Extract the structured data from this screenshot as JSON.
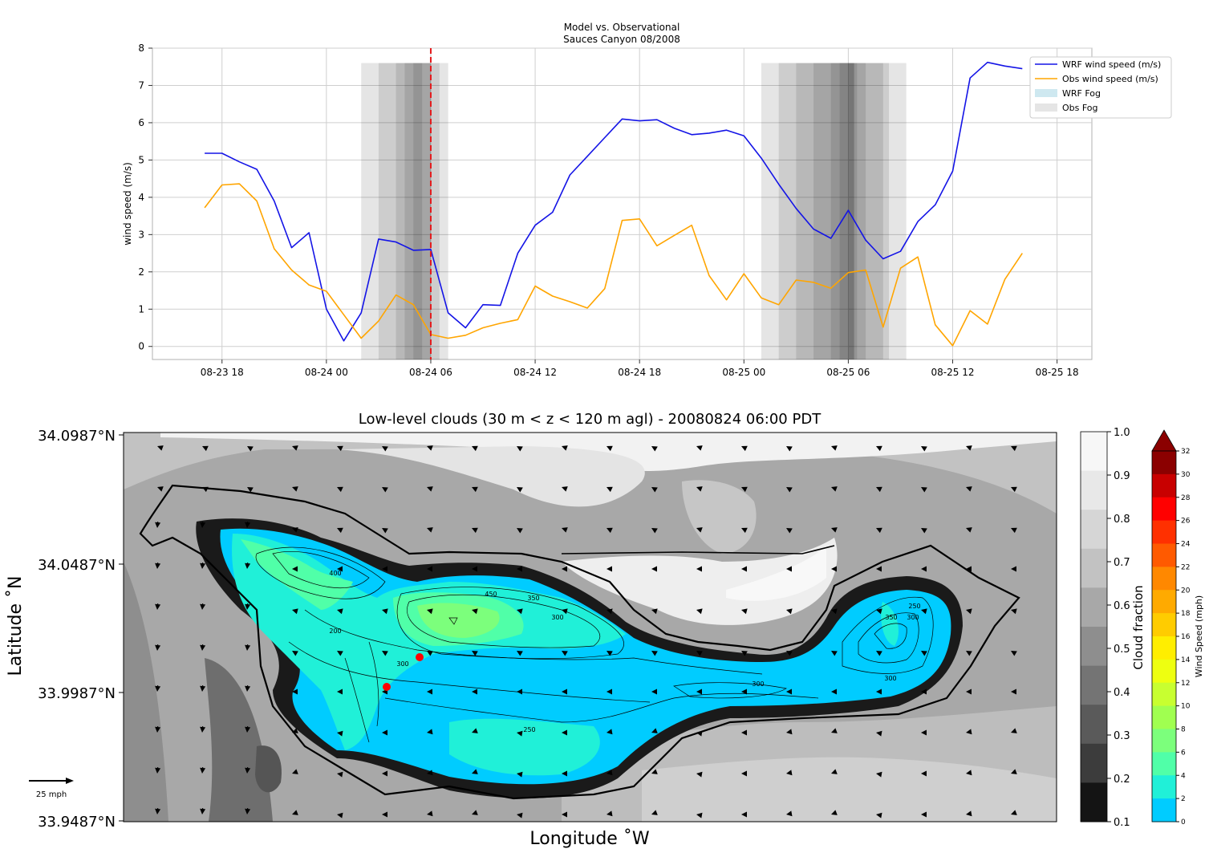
{
  "chart_data": [
    {
      "type": "line",
      "title": "Model vs. Observational",
      "subtitle": "Sauces Canyon 08/2008",
      "xlabel": "",
      "ylabel": "wind speed (m/s)",
      "ylim": [
        -0.35,
        8
      ],
      "yticks": [
        "0",
        "1",
        "2",
        "3",
        "4",
        "5",
        "6",
        "7",
        "8"
      ],
      "xlim": [
        "08-23 14:00",
        "08-25 20:00"
      ],
      "xticks": [
        {
          "t": "08-23 18:00",
          "label": "08-23 18"
        },
        {
          "t": "08-24 00:00",
          "label": "08-24 00"
        },
        {
          "t": "08-24 06:00",
          "label": "08-24 06"
        },
        {
          "t": "08-24 12:00",
          "label": "08-24 12"
        },
        {
          "t": "08-24 18:00",
          "label": "08-24 18"
        },
        {
          "t": "08-25 00:00",
          "label": "08-25 00"
        },
        {
          "t": "08-25 06:00",
          "label": "08-25 06"
        },
        {
          "t": "08-25 12:00",
          "label": "08-25 12"
        },
        {
          "t": "08-25 18:00",
          "label": "08-25 18"
        }
      ],
      "grid": true,
      "legend_position": "top-right",
      "series": [
        {
          "name": "WRF wind speed (m/s)",
          "color": "#1414e6",
          "points": [
            [
              "08-23 17:00",
              5.18
            ],
            [
              "08-23 18:00",
              5.18
            ],
            [
              "08-23 19:00",
              4.95
            ],
            [
              "08-23 20:00",
              4.75
            ],
            [
              "08-23 21:00",
              3.9
            ],
            [
              "08-23 22:00",
              2.65
            ],
            [
              "08-23 23:00",
              3.05
            ],
            [
              "08-24 00:00",
              1.0
            ],
            [
              "08-24 01:00",
              0.15
            ],
            [
              "08-24 02:00",
              0.9
            ],
            [
              "08-24 03:00",
              2.88
            ],
            [
              "08-24 04:00",
              2.8
            ],
            [
              "08-24 05:00",
              2.58
            ],
            [
              "08-24 06:00",
              2.6
            ],
            [
              "08-24 07:00",
              0.9
            ],
            [
              "08-24 08:00",
              0.5
            ],
            [
              "08-24 09:00",
              1.12
            ],
            [
              "08-24 10:00",
              1.1
            ],
            [
              "08-24 11:00",
              2.5
            ],
            [
              "08-24 12:00",
              3.25
            ],
            [
              "08-24 13:00",
              3.6
            ],
            [
              "08-24 14:00",
              4.6
            ],
            [
              "08-24 15:00",
              5.1
            ],
            [
              "08-24 16:00",
              5.6
            ],
            [
              "08-24 17:00",
              6.1
            ],
            [
              "08-24 18:00",
              6.05
            ],
            [
              "08-24 19:00",
              6.08
            ],
            [
              "08-24 20:00",
              5.85
            ],
            [
              "08-24 21:00",
              5.68
            ],
            [
              "08-24 22:00",
              5.72
            ],
            [
              "08-24 23:00",
              5.8
            ],
            [
              "08-25 00:00",
              5.65
            ],
            [
              "08-25 01:00",
              5.05
            ],
            [
              "08-25 02:00",
              4.35
            ],
            [
              "08-25 03:00",
              3.7
            ],
            [
              "08-25 04:00",
              3.15
            ],
            [
              "08-25 05:00",
              2.9
            ],
            [
              "08-25 06:00",
              3.65
            ],
            [
              "08-25 07:00",
              2.85
            ],
            [
              "08-25 08:00",
              2.35
            ],
            [
              "08-25 09:00",
              2.55
            ],
            [
              "08-25 10:00",
              3.35
            ],
            [
              "08-25 11:00",
              3.8
            ],
            [
              "08-25 12:00",
              4.7
            ],
            [
              "08-25 13:00",
              7.2
            ],
            [
              "08-25 14:00",
              7.62
            ],
            [
              "08-25 15:00",
              7.52
            ],
            [
              "08-25 16:00",
              7.45
            ]
          ]
        },
        {
          "name": "Obs wind speed (m/s)",
          "color": "#ffa500",
          "points": [
            [
              "08-23 17:00",
              3.72
            ],
            [
              "08-23 18:00",
              4.33
            ],
            [
              "08-23 19:00",
              4.36
            ],
            [
              "08-23 20:00",
              3.9
            ],
            [
              "08-23 21:00",
              2.62
            ],
            [
              "08-23 22:00",
              2.05
            ],
            [
              "08-23 23:00",
              1.65
            ],
            [
              "08-24 00:00",
              1.48
            ],
            [
              "08-24 01:00",
              0.85
            ],
            [
              "08-24 02:00",
              0.22
            ],
            [
              "08-24 03:00",
              0.68
            ],
            [
              "08-24 04:00",
              1.38
            ],
            [
              "08-24 05:00",
              1.12
            ],
            [
              "08-24 06:00",
              0.32
            ],
            [
              "08-24 07:00",
              0.22
            ],
            [
              "08-24 08:00",
              0.3
            ],
            [
              "08-24 09:00",
              0.5
            ],
            [
              "08-24 10:00",
              0.62
            ],
            [
              "08-24 11:00",
              0.72
            ],
            [
              "08-24 12:00",
              1.62
            ],
            [
              "08-24 13:00",
              1.35
            ],
            [
              "08-24 14:00",
              1.2
            ],
            [
              "08-24 15:00",
              1.03
            ],
            [
              "08-24 16:00",
              1.55
            ],
            [
              "08-24 17:00",
              3.38
            ],
            [
              "08-24 18:00",
              3.42
            ],
            [
              "08-24 19:00",
              2.7
            ],
            [
              "08-24 20:00",
              2.98
            ],
            [
              "08-24 21:00",
              3.25
            ],
            [
              "08-24 22:00",
              1.9
            ],
            [
              "08-24 23:00",
              1.25
            ],
            [
              "08-25 00:00",
              1.95
            ],
            [
              "08-25 01:00",
              1.3
            ],
            [
              "08-25 02:00",
              1.12
            ],
            [
              "08-25 03:00",
              1.78
            ],
            [
              "08-25 04:00",
              1.72
            ],
            [
              "08-25 05:00",
              1.56
            ],
            [
              "08-25 06:00",
              1.98
            ],
            [
              "08-25 07:00",
              2.05
            ],
            [
              "08-25 08:00",
              0.52
            ],
            [
              "08-25 09:00",
              2.1
            ],
            [
              "08-25 10:00",
              2.4
            ],
            [
              "08-25 11:00",
              0.58
            ],
            [
              "08-25 12:00",
              0.02
            ],
            [
              "08-25 13:00",
              0.96
            ],
            [
              "08-25 14:00",
              0.6
            ],
            [
              "08-25 15:00",
              1.8
            ],
            [
              "08-25 16:00",
              2.5
            ]
          ]
        }
      ],
      "legend": [
        {
          "label": "WRF wind speed (m/s)",
          "kind": "line",
          "color": "#1414e6"
        },
        {
          "label": "Obs wind speed (m/s)",
          "kind": "line",
          "color": "#ffa500"
        },
        {
          "label": "WRF Fog",
          "kind": "patch",
          "color": "#add8e6"
        },
        {
          "label": "Obs Fog",
          "kind": "patch",
          "color": "#d3d3d3"
        }
      ],
      "fog_shading": {
        "ymax": 7.6,
        "color": "#000000",
        "opacity": 0.1,
        "windows": [
          [
            "08-24 02:00",
            "08-24 07:00"
          ],
          [
            "08-24 03:00",
            "08-24 06:30"
          ],
          [
            "08-24 04:00",
            "08-24 06:00"
          ],
          [
            "08-24 04:30",
            "08-24 05:30"
          ],
          [
            "08-24 05:00",
            "08-24 06:00"
          ],
          [
            "08-25 01:00",
            "08-25 09:20"
          ],
          [
            "08-25 02:00",
            "08-25 08:20"
          ],
          [
            "08-25 03:00",
            "08-25 08:00"
          ],
          [
            "08-25 04:00",
            "08-25 07:00"
          ],
          [
            "08-25 05:00",
            "08-25 06:30"
          ],
          [
            "08-25 05:30",
            "08-25 06:20"
          ],
          [
            "08-25 06:00",
            "08-25 06:20"
          ]
        ]
      },
      "vline": {
        "t": "08-24 06:00",
        "color": "#e41a1c",
        "style": "dashed"
      }
    },
    {
      "type": "heatmap",
      "title": "Low-level clouds (30 m < z < 120 m agl) - 20080824 06:00 PDT",
      "xlabel": "Longitude $^\\circ$W",
      "ylabel": "Latitude $^\\circ$N",
      "ytick_labels": [
        "34.0987°N",
        "34.0487°N",
        "33.9987°N",
        "33.9487°N"
      ],
      "ylim": [
        33.9487,
        34.0987
      ],
      "reference_arrow_label": "25 mph",
      "contour_labels": [
        "400",
        "450",
        "350",
        "300",
        "200",
        "300",
        "250",
        "300",
        "250",
        "350",
        "300",
        "300"
      ],
      "colorbar_cloud": {
        "label": "Cloud fraction",
        "ticks": [
          "1.0",
          "0.9",
          "0.8",
          "0.7",
          "0.6",
          "0.5",
          "0.4",
          "0.3",
          "0.2",
          "0.1"
        ],
        "colors": [
          "#f7f7f7",
          "#e8e8e8",
          "#d6d6d6",
          "#c2c2c2",
          "#a8a8a8",
          "#8e8e8e",
          "#747474",
          "#5a5a5a",
          "#3c3c3c",
          "#141414"
        ]
      },
      "colorbar_wind": {
        "label": "Wind Speed (mph)",
        "ticks": [
          "32",
          "30",
          "28",
          "26",
          "24",
          "22",
          "20",
          "18",
          "16",
          "14",
          "12",
          "10",
          "8",
          "6",
          "4",
          "2",
          "0"
        ],
        "colors": [
          "#8b0000",
          "#c80000",
          "#ff0000",
          "#ff3000",
          "#ff5a00",
          "#ff8800",
          "#ffaa00",
          "#ffcc00",
          "#ffee00",
          "#eeff10",
          "#c8ff30",
          "#a0ff50",
          "#7cff7c",
          "#50ffa8",
          "#20f0d8",
          "#00ccff"
        ]
      },
      "stations": [
        {
          "lon_frac": 0.318,
          "lat_frac": 0.424,
          "color": "#ff0000"
        },
        {
          "lon_frac": 0.283,
          "lat_frac": 0.65,
          "color": "#ff0000"
        }
      ]
    }
  ]
}
